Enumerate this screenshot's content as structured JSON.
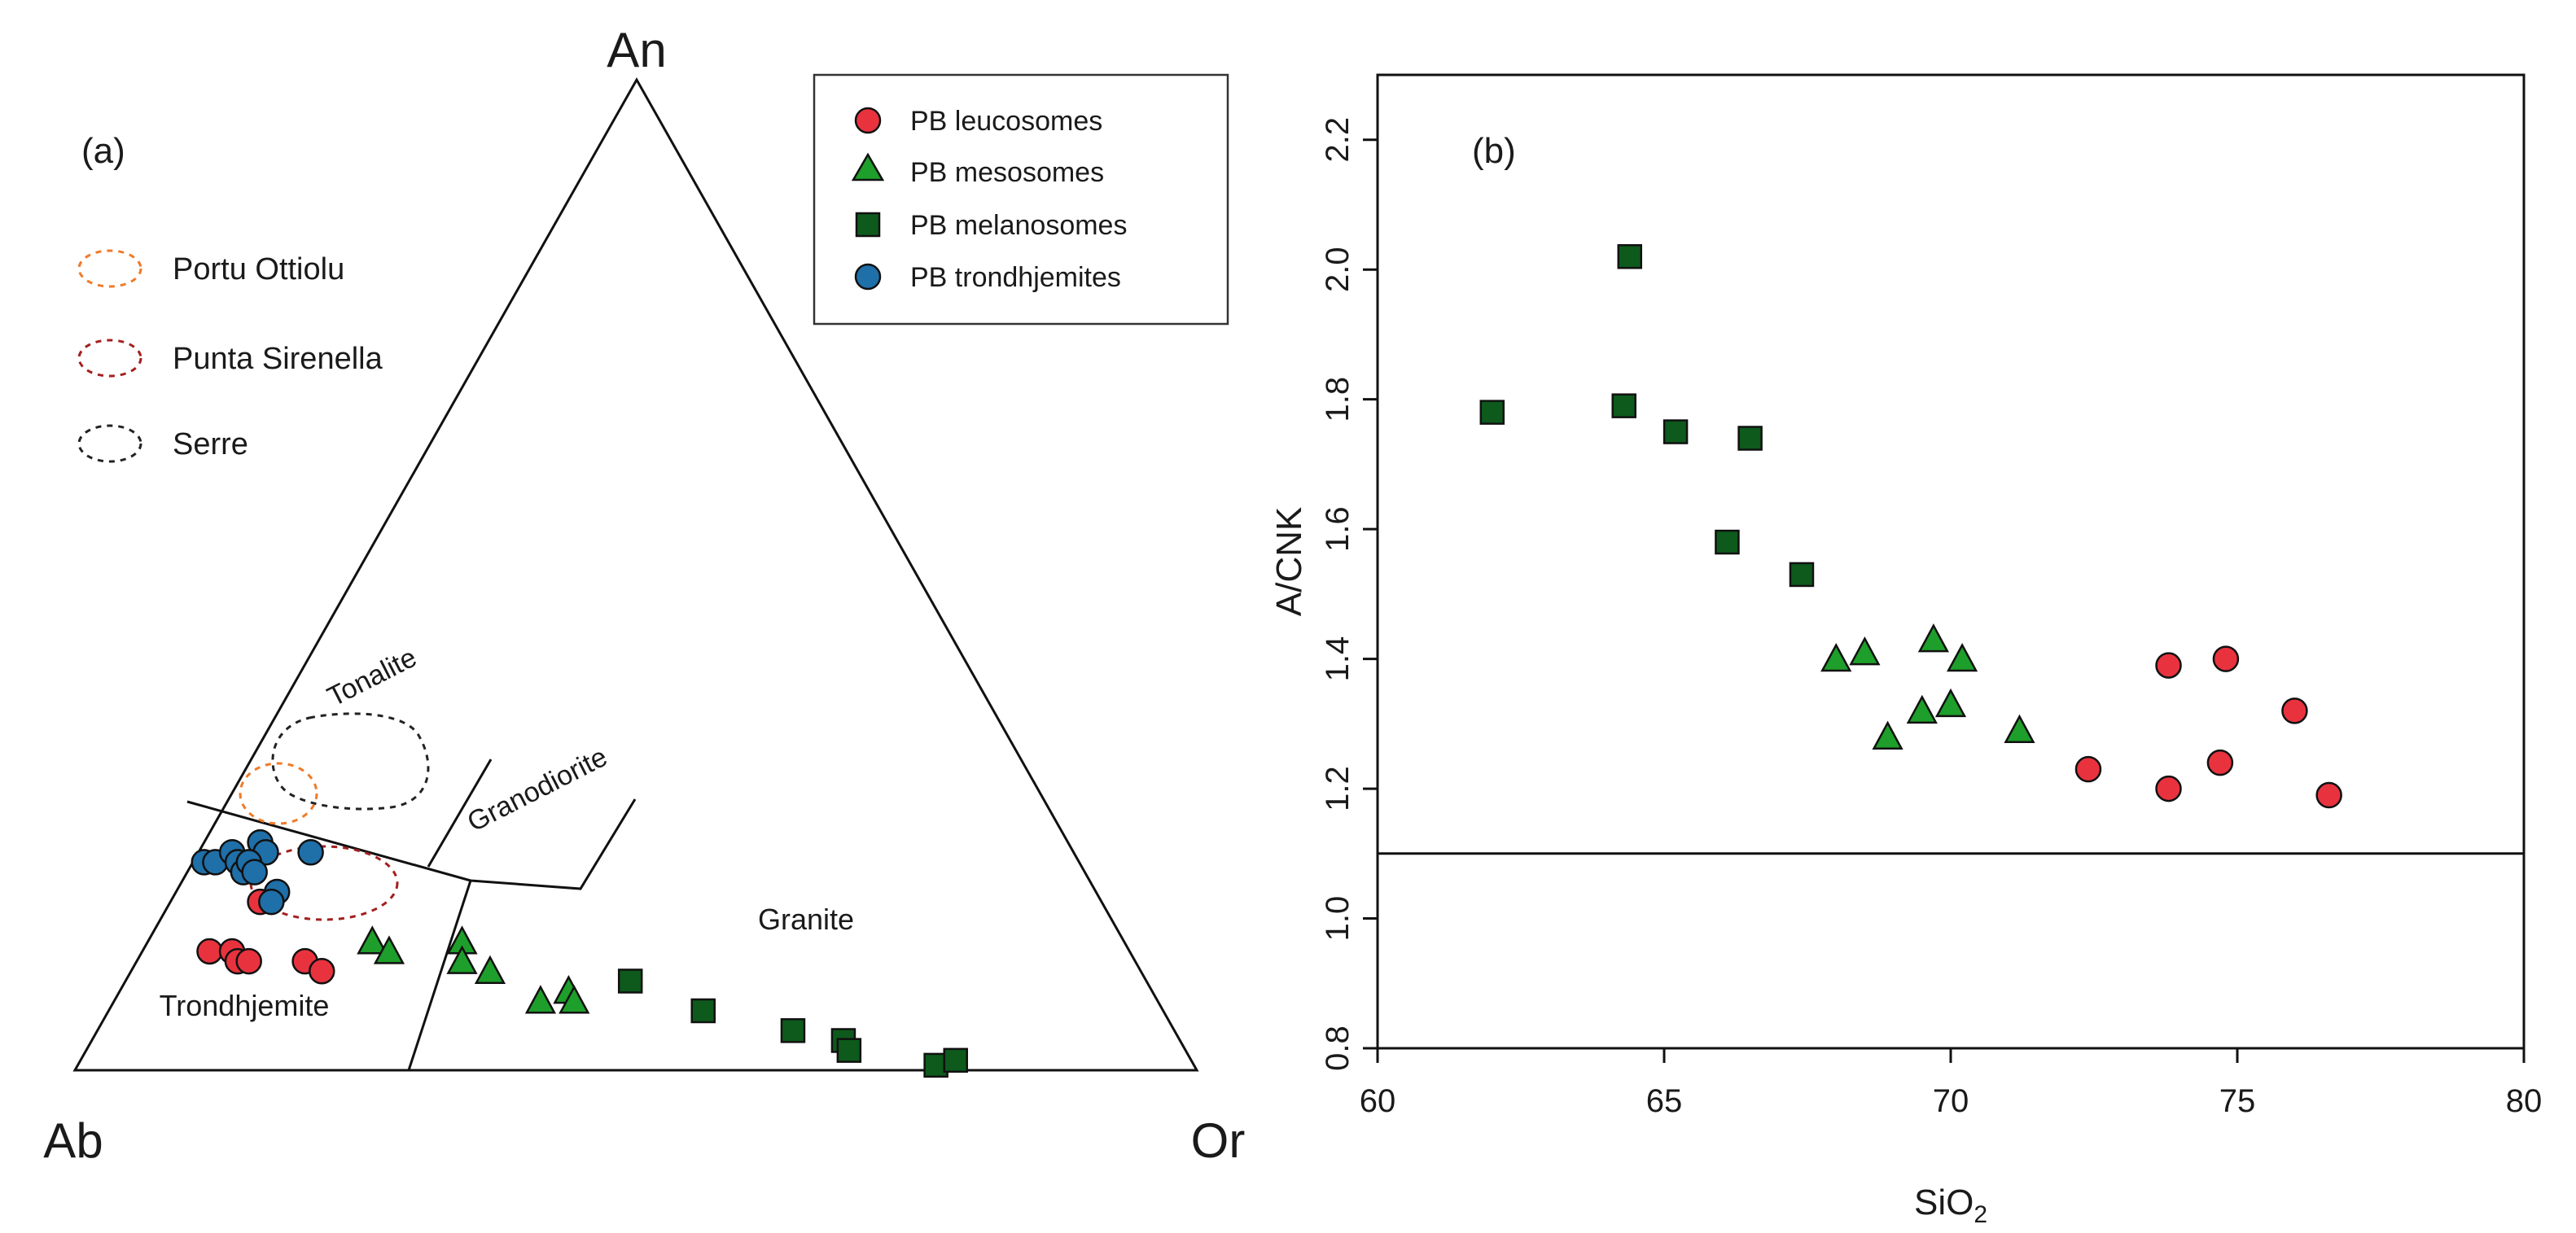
{
  "colors": {
    "leucosome": "#e8333f",
    "mesosome": "#1e9e2a",
    "melanosome": "#0d5a1c",
    "trondhjemite": "#1f6fa8",
    "portu_ottiolu": "#f07a28",
    "punta_sirenella": "#a31f1f",
    "serre": "#222222",
    "axis": "#111111"
  },
  "chart_data": [
    {
      "type": "scatter",
      "subtype": "ternary",
      "panel_label": "(a)",
      "vertices": {
        "top": "An",
        "left": "Ab",
        "right": "Or"
      },
      "field_labels": [
        "Tonalite",
        "Granodiorite",
        "Granite",
        "Trondhjemite"
      ],
      "legend": {
        "title_entries": [
          {
            "name": "PB leucosomes",
            "marker": "circle",
            "color_key": "leucosome"
          },
          {
            "name": "PB mesosomes",
            "marker": "triangle",
            "color_key": "mesosome"
          },
          {
            "name": "PB melanosomes",
            "marker": "square",
            "color_key": "melanosome"
          },
          {
            "name": "PB trondhjemites",
            "marker": "circle",
            "color_key": "trondhjemite"
          }
        ],
        "fields": [
          {
            "name": "Portu Ottiolu",
            "color_key": "portu_ottiolu"
          },
          {
            "name": "Punta Sirenella",
            "color_key": "punta_sirenella"
          },
          {
            "name": "Serre",
            "color_key": "serre"
          }
        ]
      },
      "series": [
        {
          "name": "PB leucosomes",
          "marker": "circle",
          "color_key": "leucosome",
          "points": [
            {
              "An": 12,
              "Ab": 82,
              "Or": 6
            },
            {
              "An": 12,
              "Ab": 80,
              "Or": 8
            },
            {
              "An": 11,
              "Ab": 80,
              "Or": 9
            },
            {
              "An": 11,
              "Ab": 79,
              "Or": 10
            },
            {
              "An": 11,
              "Ab": 74,
              "Or": 15
            },
            {
              "An": 10,
              "Ab": 73,
              "Or": 17
            },
            {
              "An": 17,
              "Ab": 75,
              "Or": 8
            }
          ]
        },
        {
          "name": "PB mesosomes",
          "marker": "triangle",
          "color_key": "mesosome",
          "points": [
            {
              "An": 13,
              "Ab": 67,
              "Or": 20
            },
            {
              "An": 12,
              "Ab": 66,
              "Or": 22
            },
            {
              "An": 13,
              "Ab": 59,
              "Or": 28
            },
            {
              "An": 11,
              "Ab": 60,
              "Or": 29
            },
            {
              "An": 10,
              "Ab": 58,
              "Or": 32
            },
            {
              "An": 7,
              "Ab": 55,
              "Or": 38
            },
            {
              "An": 8,
              "Ab": 52,
              "Or": 40
            },
            {
              "An": 7,
              "Ab": 52,
              "Or": 41
            }
          ]
        },
        {
          "name": "PB melanosomes",
          "marker": "square",
          "color_key": "melanosome",
          "points": [
            {
              "An": 9,
              "Ab": 46,
              "Or": 45
            },
            {
              "An": 6,
              "Ab": 41,
              "Or": 53
            },
            {
              "An": 4,
              "Ab": 34,
              "Or": 62
            },
            {
              "An": 3,
              "Ab": 30,
              "Or": 67
            },
            {
              "An": 2,
              "Ab": 30,
              "Or": 68
            },
            {
              "An": 0.5,
              "Ab": 23,
              "Or": 76.5
            },
            {
              "An": 1,
              "Ab": 21,
              "Or": 78
            }
          ]
        },
        {
          "name": "PB trondhjemites",
          "marker": "circle",
          "color_key": "trondhjemite",
          "points": [
            {
              "An": 21,
              "Ab": 78,
              "Or": 1
            },
            {
              "An": 21,
              "Ab": 77,
              "Or": 2
            },
            {
              "An": 22,
              "Ab": 75,
              "Or": 3
            },
            {
              "An": 21,
              "Ab": 75,
              "Or": 4
            },
            {
              "An": 20,
              "Ab": 75,
              "Or": 5
            },
            {
              "An": 23,
              "Ab": 72,
              "Or": 5
            },
            {
              "An": 22,
              "Ab": 72,
              "Or": 6
            },
            {
              "An": 21,
              "Ab": 74,
              "Or": 5
            },
            {
              "An": 20,
              "Ab": 74,
              "Or": 6
            },
            {
              "An": 18,
              "Ab": 73,
              "Or": 9
            },
            {
              "An": 22,
              "Ab": 68,
              "Or": 10
            },
            {
              "An": 17,
              "Ab": 74,
              "Or": 9
            }
          ]
        }
      ]
    },
    {
      "type": "scatter",
      "panel_label": "(b)",
      "xlabel": "SiO",
      "xlabel_sub": "2",
      "ylabel": "A/CNK",
      "xlim": [
        60,
        80
      ],
      "ylim": [
        0.8,
        2.3
      ],
      "xticks": [
        "60",
        "65",
        "70",
        "75",
        "80"
      ],
      "yticks": [
        "0.8",
        "1.0",
        "1.2",
        "1.4",
        "1.6",
        "1.8",
        "2.0",
        "2.2"
      ],
      "reference_line_y": 1.1,
      "series": [
        {
          "name": "PB leucosomes",
          "marker": "circle",
          "color_key": "leucosome",
          "x": [
            72.4,
            73.8,
            73.8,
            74.8,
            74.7,
            76.0,
            76.6
          ],
          "y": [
            1.23,
            1.39,
            1.2,
            1.4,
            1.24,
            1.32,
            1.19
          ]
        },
        {
          "name": "PB mesosomes",
          "marker": "triangle",
          "color_key": "mesosome",
          "x": [
            68.0,
            68.5,
            68.9,
            69.5,
            69.7,
            70.0,
            70.2,
            71.2
          ],
          "y": [
            1.4,
            1.41,
            1.28,
            1.32,
            1.43,
            1.33,
            1.4,
            1.29
          ]
        },
        {
          "name": "PB melanosomes",
          "marker": "square",
          "color_key": "melanosome",
          "x": [
            62.0,
            64.3,
            64.4,
            65.2,
            66.5,
            66.1,
            67.4
          ],
          "y": [
            1.78,
            1.79,
            2.02,
            1.75,
            1.74,
            1.58,
            1.53
          ]
        }
      ]
    }
  ]
}
